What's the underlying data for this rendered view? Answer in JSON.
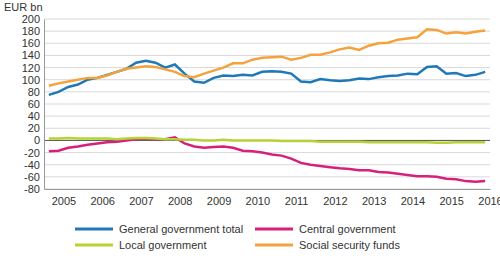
{
  "chart_data": {
    "type": "line",
    "y_label": "EUR bn",
    "categories": [
      null,
      "2005",
      null,
      null,
      null,
      "2006",
      null,
      null,
      null,
      "2007",
      null,
      null,
      null,
      "2008",
      null,
      null,
      null,
      "2009",
      null,
      null,
      null,
      "2010",
      null,
      null,
      null,
      "2011",
      null,
      null,
      null,
      "2012",
      null,
      null,
      null,
      "2013",
      null,
      null,
      null,
      "2014",
      null,
      null,
      null,
      "2015",
      null,
      null,
      null,
      "2016"
    ],
    "series": [
      {
        "name": "General government total",
        "color": "#1f78b8",
        "values": [
          75,
          80,
          88,
          92,
          100,
          103,
          108,
          113,
          118,
          128,
          131,
          128,
          120,
          125,
          110,
          97,
          95,
          103,
          107,
          106,
          108,
          107,
          113,
          114,
          113,
          110,
          97,
          96,
          101,
          99,
          98,
          99,
          102,
          101,
          104,
          106,
          107,
          110,
          109,
          121,
          122,
          110,
          111,
          106,
          108,
          113
        ]
      },
      {
        "name": "Central government",
        "color": "#d6217c",
        "values": [
          -18,
          -17,
          -12,
          -10,
          -7,
          -5,
          -3,
          -2,
          0,
          2,
          3,
          2,
          2,
          5,
          -5,
          -10,
          -12,
          -11,
          -10,
          -12,
          -17,
          -18,
          -20,
          -23,
          -25,
          -30,
          -37,
          -40,
          -42,
          -44,
          -46,
          -47,
          -49,
          -49,
          -52,
          -53,
          -55,
          -57,
          -59,
          -59,
          -60,
          -63,
          -64,
          -67,
          -68,
          -67
        ]
      },
      {
        "name": "Local government",
        "color": "#b5d334",
        "values": [
          3,
          3,
          4,
          3,
          3,
          3,
          3,
          2,
          3,
          4,
          4,
          3,
          2,
          2,
          1,
          1,
          0,
          0,
          1,
          0,
          0,
          0,
          0,
          0,
          -1,
          -1,
          -1,
          -1,
          -2,
          -2,
          -2,
          -2,
          -2,
          -3,
          -3,
          -3,
          -3,
          -3,
          -3,
          -3,
          -4,
          -4,
          -3,
          -3,
          -3,
          -3
        ]
      },
      {
        "name": "Social security funds",
        "color": "#f5a23c",
        "values": [
          90,
          94,
          97,
          100,
          103,
          103,
          107,
          113,
          118,
          120,
          122,
          121,
          117,
          113,
          106,
          104,
          110,
          115,
          120,
          127,
          127,
          133,
          136,
          137,
          138,
          133,
          136,
          141,
          141,
          145,
          150,
          153,
          149,
          156,
          160,
          161,
          166,
          168,
          170,
          183,
          182,
          176,
          178,
          176,
          179,
          181
        ]
      }
    ],
    "ylim": [
      -80,
      200
    ],
    "yticks": [
      -80,
      -60,
      -40,
      -20,
      0,
      20,
      40,
      60,
      80,
      100,
      120,
      140,
      160,
      180,
      200
    ],
    "grid": true,
    "legend": "bottom"
  }
}
